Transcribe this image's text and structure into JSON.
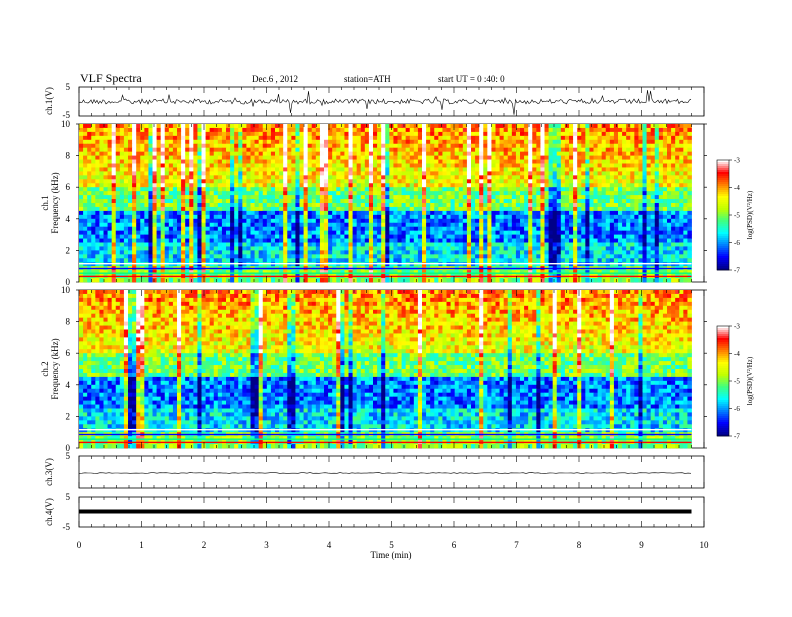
{
  "header": {
    "title": "VLF  Spectra",
    "date": "Dec.6  , 2012",
    "station": "station=ATH",
    "start": "start  UT  =   0 :40: 0"
  },
  "chart_data": [
    {
      "type": "line",
      "name": "ch1-waveform",
      "ylabel": "ch.1(V)",
      "ylim": [
        -5,
        5
      ],
      "yticks": [
        "5",
        "-5"
      ],
      "xlim": [
        0,
        10
      ],
      "description_level": "noisy waveform centered near 0 V with spikes"
    },
    {
      "type": "heatmap",
      "name": "ch1-spectrogram",
      "ylabel": "ch.1\nFrequency  (kHz)",
      "ylabel_line1": "ch.1",
      "ylabel_line2": "Frequency  (kHz)",
      "ylim": [
        0,
        10
      ],
      "yticks": [
        "0",
        "2",
        "4",
        "6",
        "8",
        "10"
      ],
      "xlim": [
        0,
        9.8
      ],
      "colorbar": {
        "label": "log(PSD)(V²/Hz)",
        "range": [
          -7,
          -3
        ],
        "ticks": [
          "-3",
          "-4",
          "-5",
          "-6",
          "-7"
        ]
      }
    },
    {
      "type": "heatmap",
      "name": "ch2-spectrogram",
      "ylabel_line1": "ch.2",
      "ylabel_line2": "Frequency  (kHz)",
      "ylim": [
        0,
        10
      ],
      "yticks": [
        "0",
        "2",
        "4",
        "6",
        "8",
        "10"
      ],
      "xlim": [
        0,
        9.8
      ],
      "colorbar": {
        "label": "log(PSD)(V²/Hz)",
        "range": [
          -7,
          -3
        ],
        "ticks": [
          "-3",
          "-4",
          "-5",
          "-6",
          "-7"
        ]
      }
    },
    {
      "type": "line",
      "name": "ch3-waveform",
      "ylabel": "ch.3(V)",
      "ylim": [
        -5,
        5
      ],
      "yticks": [
        "5",
        "-5"
      ],
      "level": -0.5
    },
    {
      "type": "line",
      "name": "ch4-waveform",
      "ylabel": "ch.4(V)",
      "ylim": [
        -5,
        5
      ],
      "yticks": [
        "5",
        "-5"
      ],
      "level": 0
    }
  ],
  "xaxis": {
    "label": "Time  (min)",
    "range": [
      0,
      10
    ],
    "ticks": [
      "0",
      "1",
      "2",
      "3",
      "4",
      "5",
      "6",
      "7",
      "8",
      "9",
      "10"
    ]
  },
  "colors": {
    "cmap": [
      "#000088",
      "#0000ff",
      "#0080ff",
      "#00ffff",
      "#40ff80",
      "#c0ff00",
      "#ffff00",
      "#ff8000",
      "#ff0000",
      "#ffffff"
    ]
  }
}
